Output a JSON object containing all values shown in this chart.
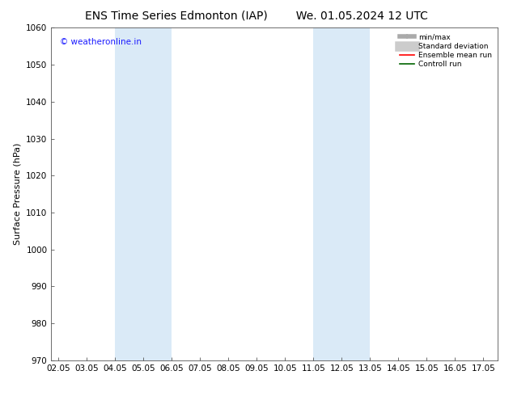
{
  "title_left": "ENS Time Series Edmonton (IAP)",
  "title_right": "We. 01.05.2024 12 UTC",
  "ylabel": "Surface Pressure (hPa)",
  "ylim": [
    970,
    1060
  ],
  "yticks": [
    970,
    980,
    990,
    1000,
    1010,
    1020,
    1030,
    1040,
    1050,
    1060
  ],
  "xlim_start": 1.75,
  "xlim_end": 17.5,
  "xtick_labels": [
    "02.05",
    "03.05",
    "04.05",
    "05.05",
    "06.05",
    "07.05",
    "08.05",
    "09.05",
    "10.05",
    "11.05",
    "12.05",
    "13.05",
    "14.05",
    "15.05",
    "16.05",
    "17.05"
  ],
  "xtick_positions": [
    2.0,
    3.0,
    4.0,
    5.0,
    6.0,
    7.0,
    8.0,
    9.0,
    10.0,
    11.0,
    12.0,
    13.0,
    14.0,
    15.0,
    16.0,
    17.0
  ],
  "shaded_regions": [
    {
      "x_start": 4.0,
      "x_end": 6.0,
      "color": "#daeaf7"
    },
    {
      "x_start": 11.0,
      "x_end": 13.0,
      "color": "#daeaf7"
    }
  ],
  "watermark_text": "© weatheronline.in",
  "watermark_color": "#1a1aff",
  "legend_items": [
    {
      "label": "min/max",
      "color": "#aaaaaa",
      "linewidth": 4
    },
    {
      "label": "Standard deviation",
      "color": "#cccccc",
      "linewidth": 9
    },
    {
      "label": "Ensemble mean run",
      "color": "#ff0000",
      "linewidth": 1.2
    },
    {
      "label": "Controll run",
      "color": "#006400",
      "linewidth": 1.2
    }
  ],
  "bg_color": "#ffffff",
  "title_fontsize": 10,
  "axis_label_fontsize": 8,
  "tick_fontsize": 7.5
}
